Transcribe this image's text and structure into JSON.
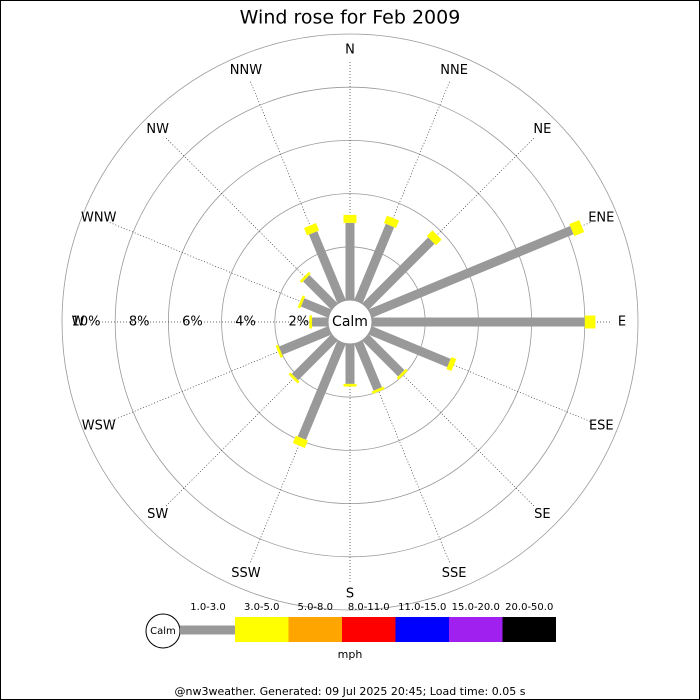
{
  "chart_data": {
    "type": "windrose",
    "title": "Wind rose for Feb 2009",
    "categories": [
      "N",
      "NNE",
      "NE",
      "ENE",
      "E",
      "ESE",
      "SE",
      "SSE",
      "S",
      "SSW",
      "SW",
      "WSW",
      "W",
      "WNW",
      "NW",
      "NNW"
    ],
    "series": [
      {
        "name": "1.0-3.0",
        "color": "#999999",
        "values": [
          2.9,
          3.1,
          3.5,
          8.2,
          8.0,
          3.2,
          1.9,
          1.9,
          1.5,
          3.9,
          2.1,
          2.0,
          0.6,
          1.1,
          1.5,
          2.8
        ]
      },
      {
        "name": "3.0-5.0",
        "color": "#ffff00",
        "values": [
          0.3,
          0.3,
          0.3,
          0.4,
          0.4,
          0.2,
          0.1,
          0.1,
          0.1,
          0.3,
          0.1,
          0.1,
          0.1,
          0.1,
          0.1,
          0.3
        ]
      },
      {
        "name": "5.0-8.0",
        "color": "#ffa500",
        "values": [
          0,
          0,
          0,
          0,
          0,
          0,
          0,
          0,
          0,
          0,
          0,
          0,
          0,
          0,
          0,
          0
        ]
      },
      {
        "name": "8.0-11.0",
        "color": "#ff0000",
        "values": [
          0,
          0,
          0,
          0,
          0,
          0,
          0,
          0,
          0,
          0,
          0,
          0,
          0,
          0,
          0,
          0
        ]
      },
      {
        "name": "11.0-15.0",
        "color": "#0000ff",
        "values": [
          0,
          0,
          0,
          0,
          0,
          0,
          0,
          0,
          0,
          0,
          0,
          0,
          0,
          0,
          0,
          0
        ]
      },
      {
        "name": "15.0-20.0",
        "color": "#a020f0",
        "values": [
          0,
          0,
          0,
          0,
          0,
          0,
          0,
          0,
          0,
          0,
          0,
          0,
          0,
          0,
          0,
          0
        ]
      },
      {
        "name": "20.0-50.0",
        "color": "#000000",
        "values": [
          0,
          0,
          0,
          0,
          0,
          0,
          0,
          0,
          0,
          0,
          0,
          0,
          0,
          0,
          0,
          0
        ]
      }
    ],
    "rlim": [
      0,
      10
    ],
    "rticks": [
      {
        "value": 2,
        "label": "2%"
      },
      {
        "value": 4,
        "label": "4%"
      },
      {
        "value": 6,
        "label": "6%"
      },
      {
        "value": 8,
        "label": "8%"
      },
      {
        "value": 10,
        "label": "10%"
      }
    ],
    "calm_label": "Calm",
    "units": "mph",
    "footer": "@nw3weather. Generated: 09 Jul 2025 20:45; Load time: 0.05 s"
  }
}
